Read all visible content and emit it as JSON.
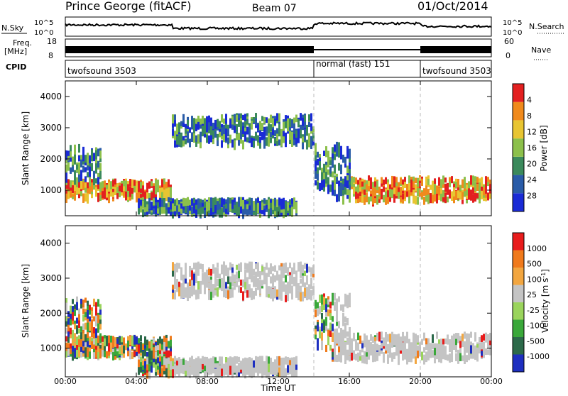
{
  "header": {
    "title": "Prince George (fitACF)",
    "beam": "Beam 07",
    "date": "01/Oct/2014"
  },
  "top_panels": {
    "nsky_label": "N.Sky",
    "nsearch_label": "N.Search",
    "nsky_ticks": [
      "10^5",
      "10^0"
    ],
    "freq_label": "Freq.",
    "freq_unit": "[MHz]",
    "freq_ticks": [
      "18",
      "8"
    ],
    "nave_label": "Nave",
    "nave_ticks": [
      "60",
      "0"
    ],
    "cpid_label": "CPID",
    "cpid_segments": [
      {
        "label": "twofsound 3503",
        "start_hour": 0,
        "end_hour": 14
      },
      {
        "label": "normal (fast) 151",
        "start_hour": 14,
        "end_hour": 20
      },
      {
        "label": "twofsound 3503",
        "start_hour": 20,
        "end_hour": 24
      }
    ]
  },
  "chart_data": [
    {
      "type": "heatmap",
      "name": "power",
      "ylabel": "Slant Range [km]",
      "xlabel": "Time UT",
      "xlim_hours": [
        0,
        24
      ],
      "ylim": [
        180,
        4500
      ],
      "yticks": [
        "1000",
        "2000",
        "3000",
        "4000"
      ],
      "xticks": [
        "00:00",
        "04:00",
        "08:00",
        "12:00",
        "16:00",
        "20:00",
        "00:00"
      ],
      "colorbar": {
        "label": "Power [dB]",
        "ticks": [
          "4",
          "8",
          "12",
          "16",
          "20",
          "24",
          "28"
        ],
        "colors": [
          "#1a2bd6",
          "#2a5ca8",
          "#3b8a5c",
          "#8cc04b",
          "#e8c532",
          "#f08a1c",
          "#e32020"
        ]
      }
    },
    {
      "type": "heatmap",
      "name": "velocity",
      "ylabel": "Slant Range [km]",
      "xlabel": "Time UT",
      "xlim_hours": [
        0,
        24
      ],
      "ylim": [
        180,
        4500
      ],
      "yticks": [
        "1000",
        "2000",
        "3000",
        "4000"
      ],
      "xticks": [
        "00:00",
        "04:00",
        "08:00",
        "12:00",
        "16:00",
        "20:00",
        "00:00"
      ],
      "colorbar": {
        "label": "Velocity [m s",
        "label_sup": "-1",
        "label_end": "]",
        "ticks": [
          "1000",
          "500",
          "100",
          "25",
          "-25",
          "-100",
          "-500",
          "-1000"
        ],
        "colors": [
          "#1e2fc0",
          "#2c6a4a",
          "#3aa83a",
          "#9ad45c",
          "#c4c4c4",
          "#f2a640",
          "#f07a1c",
          "#e81c1c"
        ]
      }
    }
  ]
}
